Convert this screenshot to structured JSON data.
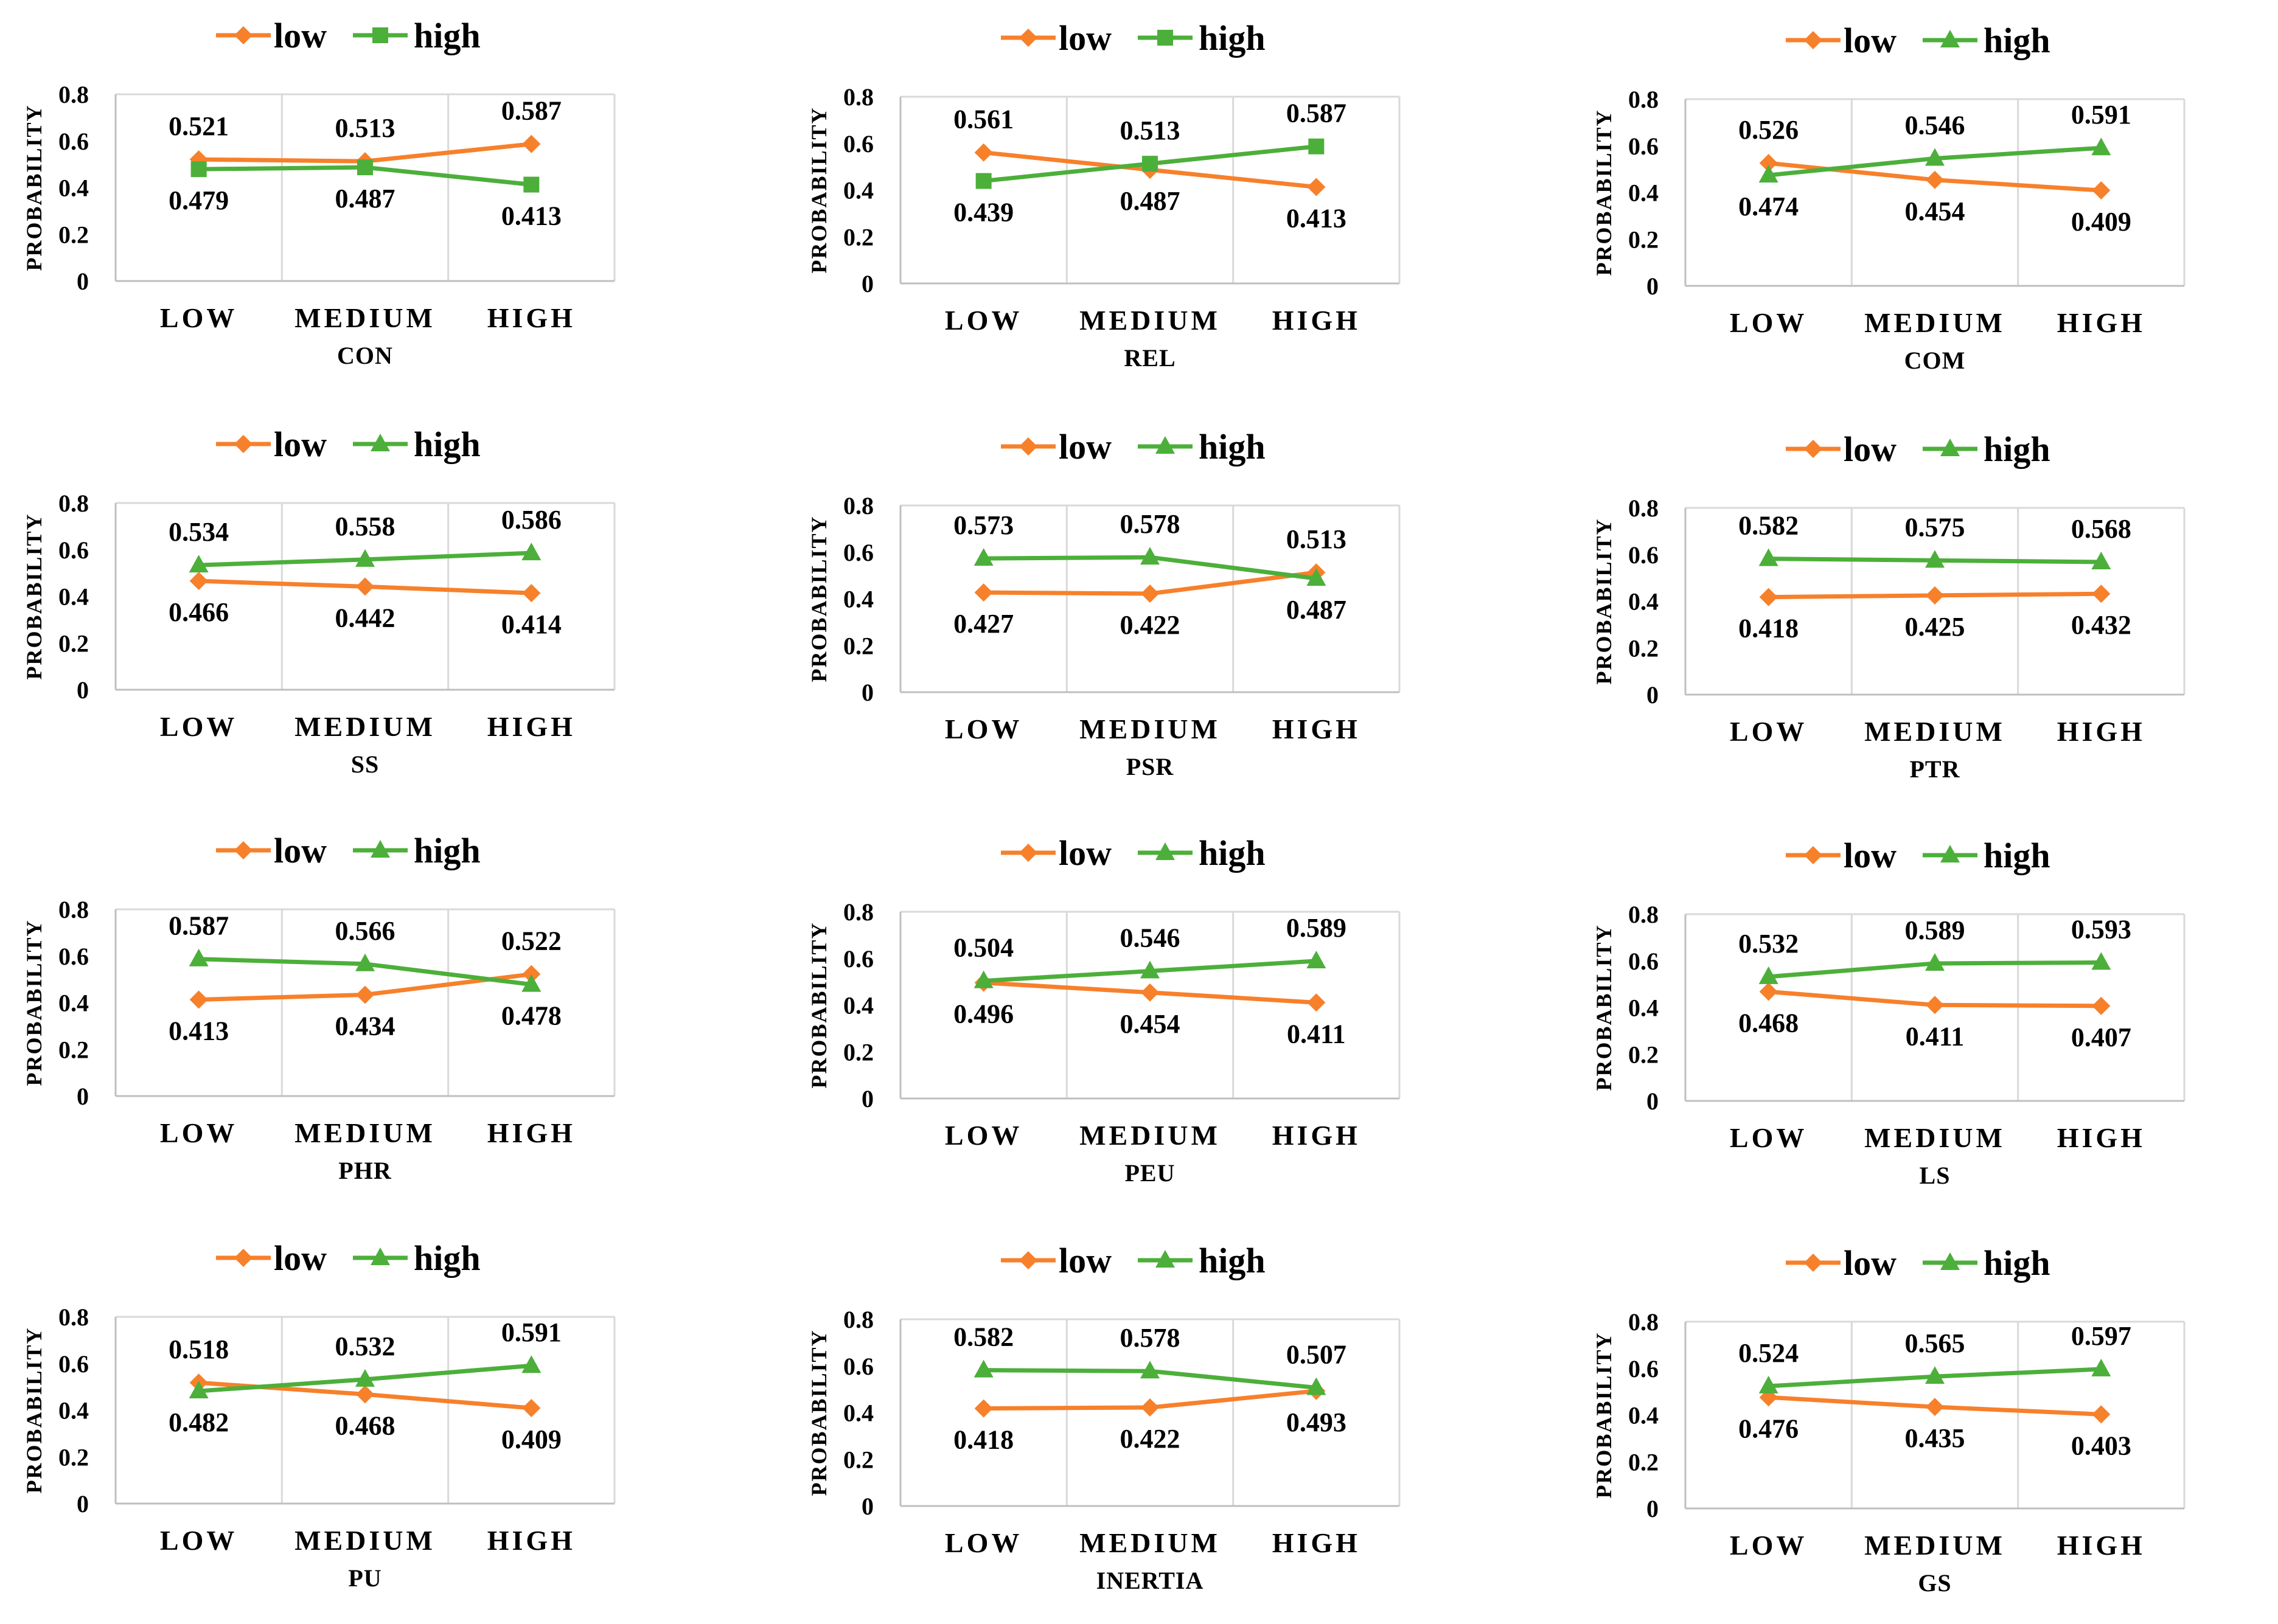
{
  "colors": {
    "low": "#F7802B",
    "high": "#4CAF3A",
    "grid": "#D9D9D9",
    "axis": "#BFBFBF"
  },
  "legend": {
    "low_label": "low",
    "high_label": "high"
  },
  "chart_data": [
    {
      "type": "line",
      "title": "",
      "xlabel": "CON",
      "ylabel": "PROBABILITY",
      "categories": [
        "LOW",
        "MEDIUM",
        "HIGH"
      ],
      "ylim": [
        0,
        0.8
      ],
      "yticks": [
        "0",
        "0.2",
        "0.4",
        "0.6",
        "0.8"
      ],
      "high_marker": "square",
      "series": [
        {
          "name": "low",
          "values": [
            0.521,
            0.513,
            0.587
          ]
        },
        {
          "name": "high",
          "values": [
            0.479,
            0.487,
            0.413
          ]
        }
      ],
      "labels": {
        "low": [
          "0.521",
          "0.513",
          "0.587"
        ],
        "high": [
          "0.479",
          "0.487",
          "0.413"
        ]
      }
    },
    {
      "type": "line",
      "title": "",
      "xlabel": "REL",
      "ylabel": "PROBABILITY",
      "categories": [
        "LOW",
        "MEDIUM",
        "HIGH"
      ],
      "ylim": [
        0,
        0.8
      ],
      "yticks": [
        "0",
        "0.2",
        "0.4",
        "0.6",
        "0.8"
      ],
      "high_marker": "square",
      "series": [
        {
          "name": "low",
          "values": [
            0.561,
            0.487,
            0.413
          ]
        },
        {
          "name": "high",
          "values": [
            0.439,
            0.513,
            0.587
          ]
        }
      ],
      "labels": {
        "low": [
          "0.561",
          "0.487",
          "0.413"
        ],
        "high": [
          "0.439",
          "0.513",
          "0.587"
        ]
      }
    },
    {
      "type": "line",
      "title": "",
      "xlabel": "COM",
      "ylabel": "PROBABILITY",
      "categories": [
        "LOW",
        "MEDIUM",
        "HIGH"
      ],
      "ylim": [
        0,
        0.8
      ],
      "yticks": [
        "0",
        "0.2",
        "0.4",
        "0.6",
        "0.8"
      ],
      "high_marker": "triangle",
      "series": [
        {
          "name": "low",
          "values": [
            0.526,
            0.454,
            0.409
          ]
        },
        {
          "name": "high",
          "values": [
            0.474,
            0.546,
            0.591
          ]
        }
      ],
      "labels": {
        "low": [
          "0.526",
          "0.454",
          "0.409"
        ],
        "high": [
          "0.474",
          "0.546",
          "0.591"
        ]
      }
    },
    {
      "type": "line",
      "title": "",
      "xlabel": "SS",
      "ylabel": "PROBABILITY",
      "categories": [
        "LOW",
        "MEDIUM",
        "HIGH"
      ],
      "ylim": [
        0,
        0.8
      ],
      "yticks": [
        "0",
        "0.2",
        "0.4",
        "0.6",
        "0.8"
      ],
      "high_marker": "triangle",
      "series": [
        {
          "name": "low",
          "values": [
            0.466,
            0.442,
            0.414
          ]
        },
        {
          "name": "high",
          "values": [
            0.534,
            0.558,
            0.586
          ]
        }
      ],
      "labels": {
        "low": [
          "0.466",
          "0.442",
          "0.414"
        ],
        "high": [
          "0.534",
          "0.558",
          "0.586"
        ]
      }
    },
    {
      "type": "line",
      "title": "",
      "xlabel": "PSR",
      "ylabel": "PROBABILITY",
      "categories": [
        "LOW",
        "MEDIUM",
        "HIGH"
      ],
      "ylim": [
        0,
        0.8
      ],
      "yticks": [
        "0",
        "0.2",
        "0.4",
        "0.6",
        "0.8"
      ],
      "high_marker": "triangle",
      "series": [
        {
          "name": "low",
          "values": [
            0.427,
            0.422,
            0.513
          ]
        },
        {
          "name": "high",
          "values": [
            0.573,
            0.578,
            0.487
          ]
        }
      ],
      "labels": {
        "low": [
          "0.427",
          "0.422",
          "0.513"
        ],
        "high": [
          "0.573",
          "0.578",
          "0.487"
        ]
      }
    },
    {
      "type": "line",
      "title": "",
      "xlabel": "PTR",
      "ylabel": "PROBABILITY",
      "categories": [
        "LOW",
        "MEDIUM",
        "HIGH"
      ],
      "ylim": [
        0,
        0.8
      ],
      "yticks": [
        "0",
        "0.2",
        "0.4",
        "0.6",
        "0.8"
      ],
      "high_marker": "triangle",
      "series": [
        {
          "name": "low",
          "values": [
            0.418,
            0.425,
            0.432
          ]
        },
        {
          "name": "high",
          "values": [
            0.582,
            0.575,
            0.568
          ]
        }
      ],
      "labels": {
        "low": [
          "0.418",
          "0.425",
          "0.432"
        ],
        "high": [
          "0.582",
          "0.575",
          "0.568"
        ]
      }
    },
    {
      "type": "line",
      "title": "",
      "xlabel": "PHR",
      "ylabel": "PROBABILITY",
      "categories": [
        "LOW",
        "MEDIUM",
        "HIGH"
      ],
      "ylim": [
        0,
        0.8
      ],
      "yticks": [
        "0",
        "0.2",
        "0.4",
        "0.6",
        "0.8"
      ],
      "high_marker": "triangle",
      "series": [
        {
          "name": "low",
          "values": [
            0.413,
            0.434,
            0.522
          ]
        },
        {
          "name": "high",
          "values": [
            0.587,
            0.566,
            0.478
          ]
        }
      ],
      "labels": {
        "low": [
          "0.413",
          "0.434",
          "0.522"
        ],
        "high": [
          "0.587",
          "0.566",
          "0.478"
        ]
      }
    },
    {
      "type": "line",
      "title": "",
      "xlabel": "PEU",
      "ylabel": "PROBABILITY",
      "categories": [
        "LOW",
        "MEDIUM",
        "HIGH"
      ],
      "ylim": [
        0,
        0.8
      ],
      "yticks": [
        "0",
        "0.2",
        "0.4",
        "0.6",
        "0.8"
      ],
      "high_marker": "triangle",
      "series": [
        {
          "name": "low",
          "values": [
            0.496,
            0.454,
            0.411
          ]
        },
        {
          "name": "high",
          "values": [
            0.504,
            0.546,
            0.589
          ]
        }
      ],
      "labels": {
        "low": [
          "0.496",
          "0.454",
          "0.411"
        ],
        "high": [
          "0.504",
          "0.546",
          "0.589"
        ]
      }
    },
    {
      "type": "line",
      "title": "",
      "xlabel": "LS",
      "ylabel": "PROBABILITY",
      "categories": [
        "LOW",
        "MEDIUM",
        "HIGH"
      ],
      "ylim": [
        0,
        0.8
      ],
      "yticks": [
        "0",
        "0.2",
        "0.4",
        "0.6",
        "0.8"
      ],
      "high_marker": "triangle",
      "series": [
        {
          "name": "low",
          "values": [
            0.468,
            0.411,
            0.407
          ]
        },
        {
          "name": "high",
          "values": [
            0.532,
            0.589,
            0.593
          ]
        }
      ],
      "labels": {
        "low": [
          "0.468",
          "0.411",
          "0.407"
        ],
        "high": [
          "0.532",
          "0.589",
          "0.593"
        ]
      }
    },
    {
      "type": "line",
      "title": "",
      "xlabel": "PU",
      "ylabel": "PROBABILITY",
      "categories": [
        "LOW",
        "MEDIUM",
        "HIGH"
      ],
      "ylim": [
        0,
        0.8
      ],
      "yticks": [
        "0",
        "0.2",
        "0.4",
        "0.6",
        "0.8"
      ],
      "high_marker": "triangle",
      "series": [
        {
          "name": "low",
          "values": [
            0.518,
            0.468,
            0.409
          ]
        },
        {
          "name": "high",
          "values": [
            0.482,
            0.532,
            0.591
          ]
        }
      ],
      "labels": {
        "low": [
          "0.518",
          "0.468",
          "0.409"
        ],
        "high": [
          "0.482",
          "0.532",
          "0.591"
        ]
      }
    },
    {
      "type": "line",
      "title": "",
      "xlabel": "INERTIA",
      "ylabel": "PROBABILITY",
      "categories": [
        "LOW",
        "MEDIUM",
        "HIGH"
      ],
      "ylim": [
        0,
        0.8
      ],
      "yticks": [
        "0",
        "0.2",
        "0.4",
        "0.6",
        "0.8"
      ],
      "high_marker": "triangle",
      "series": [
        {
          "name": "low",
          "values": [
            0.418,
            0.422,
            0.493
          ]
        },
        {
          "name": "high",
          "values": [
            0.582,
            0.578,
            0.507
          ]
        }
      ],
      "labels": {
        "low": [
          "0.418",
          "0.422",
          "0.493"
        ],
        "high": [
          "0.582",
          "0.578",
          "0.507"
        ]
      }
    },
    {
      "type": "line",
      "title": "",
      "xlabel": "GS",
      "ylabel": "PROBABILITY",
      "categories": [
        "LOW",
        "MEDIUM",
        "HIGH"
      ],
      "ylim": [
        0,
        0.8
      ],
      "yticks": [
        "0",
        "0.2",
        "0.4",
        "0.6",
        "0.8"
      ],
      "high_marker": "triangle",
      "series": [
        {
          "name": "low",
          "values": [
            0.476,
            0.435,
            0.403
          ]
        },
        {
          "name": "high",
          "values": [
            0.524,
            0.565,
            0.597
          ]
        }
      ],
      "labels": {
        "low": [
          "0.476",
          "0.435",
          "0.403"
        ],
        "high": [
          "0.524",
          "0.565",
          "0.597"
        ]
      }
    }
  ]
}
